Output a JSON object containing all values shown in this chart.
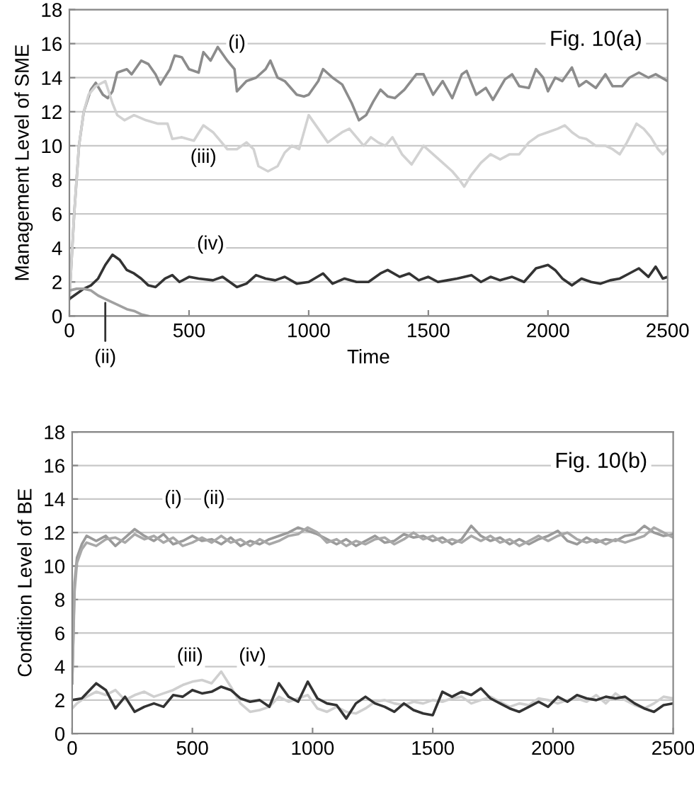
{
  "chart_data": [
    {
      "type": "line",
      "ylabel": "Management Level of SME",
      "xlabel": "Time",
      "xlim": [
        0,
        2500
      ],
      "ylim": [
        0,
        18
      ],
      "xticks": [
        0,
        500,
        1000,
        1500,
        2000,
        2500
      ],
      "yticks": [
        0,
        2,
        4,
        6,
        8,
        10,
        12,
        14,
        16,
        18
      ],
      "grid": "y",
      "legend": false,
      "annotations": [
        "Fig. 10(a)",
        {
          "text": "(i)",
          "x": 700,
          "y": 16
        },
        {
          "text": "(iii)",
          "x": 560,
          "y": 9.3
        },
        {
          "text": "(iv)",
          "x": 590,
          "y": 4.2
        },
        {
          "text": "(ii)",
          "x": 150,
          "y": 1
        }
      ],
      "series": [
        {
          "color": "#8c8c8c",
          "x": [
            0,
            20,
            40,
            60,
            90,
            110,
            140,
            160,
            180,
            200,
            240,
            260,
            300,
            330,
            360,
            380,
            420,
            440,
            470,
            500,
            540,
            560,
            590,
            620,
            660,
            690,
            700,
            740,
            780,
            820,
            840,
            870,
            900,
            950,
            980,
            1000,
            1040,
            1060,
            1100,
            1140,
            1180,
            1210,
            1240,
            1270,
            1300,
            1330,
            1360,
            1400,
            1450,
            1480,
            1520,
            1560,
            1600,
            1640,
            1660,
            1700,
            1740,
            1770,
            1820,
            1850,
            1880,
            1920,
            1950,
            1980,
            2000,
            2030,
            2060,
            2100,
            2130,
            2160,
            2200,
            2240,
            2270,
            2310,
            2340,
            2380,
            2420,
            2450,
            2500
          ],
          "values": [
            1,
            6,
            10,
            12,
            13.3,
            13.7,
            13,
            12.8,
            13.2,
            14.3,
            14.5,
            14.2,
            15,
            14.8,
            14.2,
            13.6,
            14.5,
            15.3,
            15.2,
            14.5,
            14.3,
            15.5,
            15,
            15.8,
            15,
            14.5,
            13.2,
            13.8,
            14,
            14.5,
            15,
            14,
            13.8,
            13,
            12.9,
            13,
            13.8,
            14.5,
            14,
            13.6,
            12.5,
            11.5,
            11.8,
            12.6,
            13.3,
            12.9,
            12.8,
            13.3,
            14.2,
            14.2,
            13,
            13.8,
            12.8,
            14.2,
            14.4,
            13,
            13.4,
            12.7,
            13.9,
            14.2,
            13.5,
            13.4,
            14.5,
            14,
            13.2,
            14,
            13.8,
            14.6,
            13.5,
            13.8,
            13.4,
            14.2,
            13.5,
            13.5,
            14,
            14.3,
            14,
            14.2,
            13.8
          ]
        },
        {
          "color": "#d2d2d2",
          "x": [
            0,
            20,
            40,
            60,
            80,
            110,
            150,
            180,
            200,
            230,
            270,
            320,
            370,
            410,
            430,
            470,
            520,
            560,
            600,
            630,
            660,
            700,
            740,
            770,
            790,
            830,
            870,
            900,
            930,
            960,
            1000,
            1040,
            1080,
            1110,
            1140,
            1170,
            1200,
            1230,
            1260,
            1290,
            1320,
            1350,
            1390,
            1430,
            1480,
            1520,
            1560,
            1600,
            1630,
            1650,
            1680,
            1720,
            1760,
            1800,
            1840,
            1880,
            1920,
            1960,
            2000,
            2040,
            2070,
            2100,
            2130,
            2160,
            2200,
            2240,
            2270,
            2300,
            2330,
            2370,
            2400,
            2430,
            2460,
            2480,
            2500
          ],
          "values": [
            1,
            6,
            10,
            12,
            13,
            13.5,
            13.8,
            12.5,
            11.8,
            11.5,
            11.8,
            11.5,
            11.3,
            11.3,
            10.4,
            10.5,
            10.3,
            11.2,
            10.8,
            10.3,
            9.8,
            9.8,
            10.2,
            9.8,
            8.8,
            8.5,
            8.8,
            9.6,
            10,
            9.8,
            11.8,
            11,
            10.2,
            10.5,
            10.8,
            11,
            10.5,
            10,
            10.5,
            10.2,
            10,
            10.5,
            9.5,
            8.9,
            10,
            9.5,
            9,
            8.5,
            8,
            7.6,
            8.3,
            9,
            9.5,
            9.2,
            9.5,
            9.5,
            10.2,
            10.6,
            10.8,
            11,
            11.2,
            10.8,
            10.5,
            10.4,
            10,
            10,
            9.8,
            9.5,
            10.2,
            11.3,
            11,
            10.5,
            9.8,
            9.5,
            9.8
          ]
        },
        {
          "color": "#333333",
          "x": [
            0,
            30,
            60,
            90,
            120,
            150,
            180,
            210,
            240,
            270,
            300,
            330,
            360,
            400,
            430,
            460,
            500,
            540,
            600,
            640,
            700,
            740,
            780,
            820,
            860,
            900,
            950,
            1000,
            1060,
            1100,
            1150,
            1200,
            1250,
            1300,
            1330,
            1380,
            1420,
            1460,
            1500,
            1540,
            1580,
            1620,
            1680,
            1720,
            1760,
            1800,
            1850,
            1900,
            1950,
            2000,
            2030,
            2060,
            2100,
            2140,
            2180,
            2220,
            2260,
            2300,
            2340,
            2380,
            2420,
            2450,
            2480,
            2500
          ],
          "values": [
            1,
            1.3,
            1.6,
            1.8,
            2.2,
            3,
            3.6,
            3.3,
            2.7,
            2.5,
            2.2,
            1.8,
            1.7,
            2.2,
            2.4,
            2,
            2.3,
            2.2,
            2.1,
            2.3,
            1.7,
            1.9,
            2.4,
            2.2,
            2.1,
            2.3,
            1.9,
            2,
            2.5,
            1.9,
            2.2,
            2,
            2,
            2.5,
            2.7,
            2.3,
            2.5,
            2.1,
            2.3,
            2,
            2.1,
            2.2,
            2.4,
            2,
            2.3,
            2.1,
            2.3,
            2,
            2.8,
            3,
            2.7,
            2.2,
            1.8,
            2.2,
            2,
            1.9,
            2.1,
            2.2,
            2.5,
            2.8,
            2.3,
            2.9,
            2.2,
            2.3
          ]
        },
        {
          "color": "#a0a0a0",
          "x": [
            0,
            30,
            60,
            90,
            120,
            150,
            180,
            210,
            240,
            270,
            300,
            330
          ],
          "values": [
            1.5,
            1.6,
            1.6,
            1.5,
            1.2,
            1,
            0.8,
            0.6,
            0.4,
            0.3,
            0.1,
            0
          ]
        }
      ]
    },
    {
      "type": "line",
      "ylabel": "Condition Level of BE",
      "xlim": [
        0,
        2500
      ],
      "ylim": [
        0,
        18
      ],
      "xticks": [
        0,
        500,
        1000,
        1500,
        2000,
        2500
      ],
      "yticks": [
        0,
        2,
        4,
        6,
        8,
        10,
        12,
        14,
        16,
        18
      ],
      "grid": "y",
      "legend": false,
      "annotations": [
        "Fig. 10(b)",
        {
          "text": "(i)",
          "x": 420,
          "y": 14
        },
        {
          "text": "(ii)",
          "x": 590,
          "y": 14
        },
        {
          "text": "(iii)",
          "x": 490,
          "y": 4.6
        },
        {
          "text": "(iv)",
          "x": 750,
          "y": 4.6
        }
      ],
      "series": [
        {
          "color": "#9a9a9a",
          "x": [
            0,
            10,
            20,
            40,
            60,
            100,
            140,
            180,
            220,
            260,
            300,
            340,
            380,
            420,
            460,
            500,
            540,
            580,
            620,
            660,
            700,
            740,
            780,
            820,
            860,
            900,
            940,
            980,
            1020,
            1060,
            1100,
            1140,
            1180,
            1220,
            1260,
            1300,
            1340,
            1380,
            1420,
            1460,
            1500,
            1540,
            1580,
            1620,
            1660,
            1700,
            1740,
            1780,
            1820,
            1860,
            1900,
            1940,
            1980,
            2020,
            2060,
            2100,
            2140,
            2180,
            2220,
            2260,
            2300,
            2340,
            2380,
            2420,
            2460,
            2500
          ],
          "values": [
            3,
            9,
            10.5,
            11.3,
            11.8,
            11.5,
            11.8,
            11.2,
            11.7,
            12.2,
            11.8,
            11.5,
            11.9,
            11.3,
            11.5,
            11.8,
            11.5,
            11.6,
            11.3,
            11.7,
            11.2,
            11.5,
            11.3,
            11.6,
            11.8,
            12,
            12.3,
            12.1,
            11.9,
            11.6,
            11.3,
            11.6,
            11.2,
            11.5,
            11.8,
            11.4,
            11.5,
            11.9,
            11.7,
            11.8,
            11.5,
            11.7,
            11.3,
            11.6,
            12.4,
            11.8,
            11.5,
            11.7,
            11.3,
            11.6,
            11.3,
            11.6,
            11.8,
            12.1,
            11.5,
            11.3,
            11.7,
            11.4,
            11.6,
            11.5,
            11.8,
            11.9,
            12.4,
            12,
            11.8,
            11.9
          ]
        },
        {
          "color": "#a8a8a8",
          "x": [
            0,
            10,
            20,
            40,
            60,
            100,
            140,
            180,
            220,
            260,
            300,
            340,
            380,
            420,
            460,
            500,
            540,
            580,
            620,
            660,
            700,
            740,
            780,
            820,
            860,
            900,
            940,
            980,
            1020,
            1060,
            1100,
            1140,
            1180,
            1220,
            1260,
            1300,
            1340,
            1380,
            1420,
            1460,
            1500,
            1540,
            1580,
            1620,
            1660,
            1700,
            1740,
            1780,
            1820,
            1860,
            1900,
            1940,
            1980,
            2020,
            2060,
            2100,
            2140,
            2180,
            2220,
            2260,
            2300,
            2340,
            2380,
            2420,
            2460,
            2500
          ],
          "values": [
            3,
            8.5,
            10.2,
            11,
            11.4,
            11.2,
            11.6,
            11.7,
            11.4,
            11.9,
            11.6,
            11.8,
            11.4,
            11.7,
            11.2,
            11.4,
            11.7,
            11.4,
            11.8,
            11.4,
            11.6,
            11.2,
            11.6,
            11.3,
            11.5,
            11.8,
            11.9,
            12.3,
            12,
            11.4,
            11.6,
            11.2,
            11.5,
            11.3,
            11.6,
            11.7,
            11.3,
            11.6,
            12,
            11.6,
            11.8,
            11.4,
            11.6,
            11.4,
            11.8,
            11.5,
            11.8,
            11.4,
            11.6,
            11.2,
            11.5,
            11.8,
            11.5,
            11.8,
            12,
            11.6,
            11.4,
            11.6,
            11.3,
            11.6,
            11.4,
            11.6,
            11.8,
            12.3,
            12,
            11.7
          ]
        },
        {
          "color": "#cfcfcf",
          "x": [
            0,
            20,
            60,
            100,
            140,
            180,
            220,
            260,
            300,
            340,
            380,
            420,
            460,
            500,
            540,
            580,
            620,
            660,
            700,
            740,
            780,
            820,
            860,
            900,
            940,
            980,
            1020,
            1060,
            1100,
            1140,
            1180,
            1220,
            1260,
            1300,
            1340,
            1380,
            1420,
            1460,
            1500,
            1540,
            1580,
            1620,
            1660,
            1700,
            1740,
            1780,
            1820,
            1860,
            1900,
            1940,
            1980,
            2020,
            2060,
            2100,
            2140,
            2180,
            2220,
            2260,
            2300,
            2340,
            2380,
            2420,
            2460,
            2500
          ],
          "values": [
            1.5,
            1.8,
            2.2,
            2.5,
            2.3,
            2.6,
            2,
            2.3,
            2.5,
            2.2,
            2.4,
            2.6,
            2.9,
            3.1,
            3.2,
            3,
            3.7,
            2.8,
            1.8,
            1.3,
            1.4,
            1.6,
            2.2,
            1.9,
            2.1,
            2.3,
            1.5,
            1.3,
            1.6,
            1.3,
            1.2,
            1.5,
            1.9,
            2,
            1.8,
            1.7,
            1.9,
            1.8,
            2,
            1.9,
            2.1,
            2.2,
            1.8,
            2,
            2.2,
            1.9,
            1.6,
            1.8,
            1.7,
            2.1,
            2,
            1.8,
            2,
            2.1,
            1.9,
            2.3,
            1.8,
            2.4,
            2,
            1.7,
            1.5,
            1.8,
            2.2,
            2.1
          ]
        },
        {
          "color": "#333333",
          "x": [
            0,
            40,
            80,
            100,
            140,
            180,
            220,
            260,
            300,
            340,
            380,
            420,
            460,
            500,
            540,
            580,
            620,
            660,
            700,
            740,
            780,
            820,
            860,
            900,
            940,
            980,
            1020,
            1060,
            1100,
            1140,
            1180,
            1220,
            1260,
            1300,
            1340,
            1380,
            1420,
            1460,
            1500,
            1540,
            1580,
            1620,
            1660,
            1700,
            1740,
            1780,
            1820,
            1860,
            1900,
            1940,
            1980,
            2020,
            2060,
            2100,
            2140,
            2180,
            2220,
            2260,
            2300,
            2340,
            2380,
            2420,
            2460,
            2500
          ],
          "values": [
            2,
            2.1,
            2.7,
            3,
            2.6,
            1.5,
            2.2,
            1.3,
            1.6,
            1.8,
            1.6,
            2.3,
            2.2,
            2.6,
            2.4,
            2.5,
            2.8,
            2.6,
            2.1,
            1.9,
            2,
            1.6,
            3,
            2.2,
            1.9,
            3.1,
            2.1,
            1.8,
            1.7,
            0.9,
            1.8,
            2.2,
            1.8,
            1.6,
            1.3,
            1.8,
            1.4,
            1.2,
            1.1,
            2.5,
            2.2,
            2.5,
            2.3,
            2.7,
            2.1,
            1.8,
            1.5,
            1.3,
            1.6,
            1.9,
            1.6,
            2.2,
            1.9,
            2.3,
            2.1,
            2,
            2.2,
            2.1,
            2.2,
            1.8,
            1.5,
            1.3,
            1.7,
            1.8
          ]
        }
      ]
    }
  ]
}
